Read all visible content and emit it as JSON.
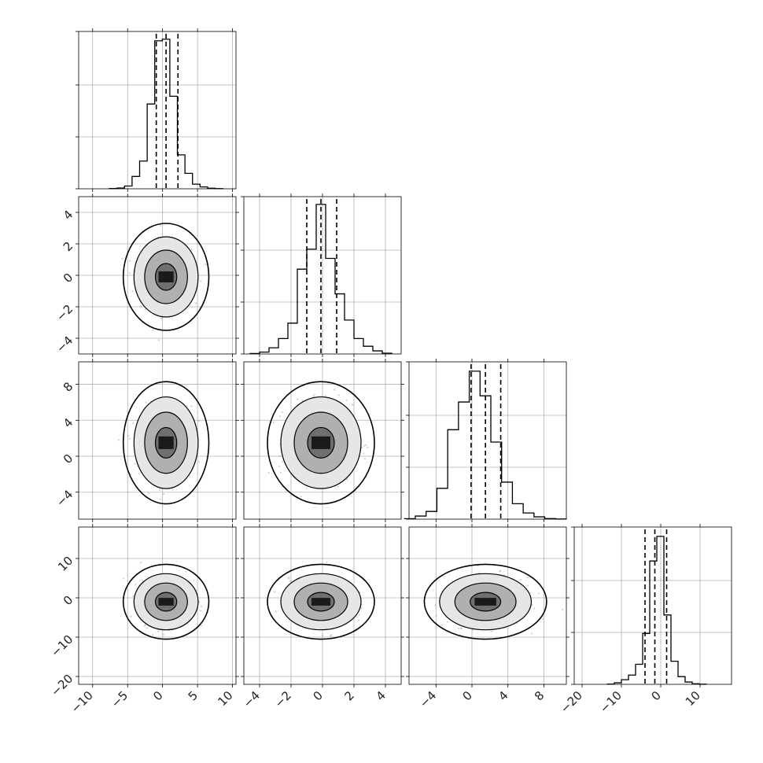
{
  "chart_data": {
    "type": "corner",
    "description": "Corner plot of a 4-dimensional sample: 1D histograms on the diagonal with dashed quantile lines, 2D density contours with scatter points below the diagonal.",
    "parameters": [
      {
        "range": [
          -12,
          10.5
        ],
        "ticks": [
          -10,
          -5,
          0,
          5,
          10
        ],
        "mean": 0.5,
        "sd": 1.8,
        "quantiles": [
          -0.9,
          0.5,
          2.2
        ],
        "hist_bins": [
          0.002,
          0.005,
          0.018,
          0.08,
          0.18,
          0.55,
          0.96,
          0.97,
          0.6,
          0.22,
          0.1,
          0.03,
          0.012,
          0.004,
          0.001
        ]
      },
      {
        "range": [
          -5,
          5
        ],
        "ticks": [
          -4,
          -2,
          0,
          2,
          4
        ],
        "mean": -0.1,
        "sd": 1.0,
        "quantiles": [
          -1.0,
          -0.1,
          0.9
        ],
        "hist_bins": [
          0.003,
          0.012,
          0.04,
          0.1,
          0.2,
          0.55,
          0.68,
          0.97,
          0.62,
          0.39,
          0.22,
          0.1,
          0.05,
          0.02,
          0.005
        ]
      },
      {
        "range": [
          -7,
          10.5
        ],
        "ticks": [
          -4,
          0,
          4,
          8
        ],
        "mean": 1.5,
        "sd": 2.0,
        "quantiles": [
          -0.1,
          1.5,
          3.2
        ],
        "hist_bins": [
          0.003,
          0.02,
          0.05,
          0.2,
          0.58,
          0.76,
          0.96,
          0.8,
          0.5,
          0.24,
          0.1,
          0.04,
          0.015,
          0.004,
          0.001
        ]
      },
      {
        "range": [
          -22,
          18
        ],
        "ticks": [
          -20,
          -10,
          0,
          10
        ],
        "mean": -1.0,
        "sd": 2.8,
        "quantiles": [
          -4.0,
          -1.5,
          1.5
        ],
        "hist_bins": [
          0.002,
          0.01,
          0.03,
          0.06,
          0.13,
          0.33,
          0.8,
          0.96,
          0.45,
          0.15,
          0.05,
          0.015,
          0.004,
          0.001
        ]
      }
    ],
    "correlations": {
      "1-0": 0.0,
      "2-0": 0.0,
      "2-1": 0.05,
      "3-0": 0.0,
      "3-1": 0.0,
      "3-2": 0.05
    },
    "contour_levels_sigma": [
      0.5,
      1.0,
      1.5,
      2.0
    ],
    "scatter_points_per_panel": 550,
    "colors": {
      "line": "#000000",
      "scatter": "#9a9a9a",
      "grid": "#b0b0b0",
      "fill_light": "#e6e6e6",
      "fill_mid": "#b0b0b0",
      "fill_dark": "#6f6f6f",
      "fill_core": "#1a1a1a"
    },
    "grid": true,
    "axis_labels": [
      "",
      "",
      "",
      ""
    ]
  }
}
